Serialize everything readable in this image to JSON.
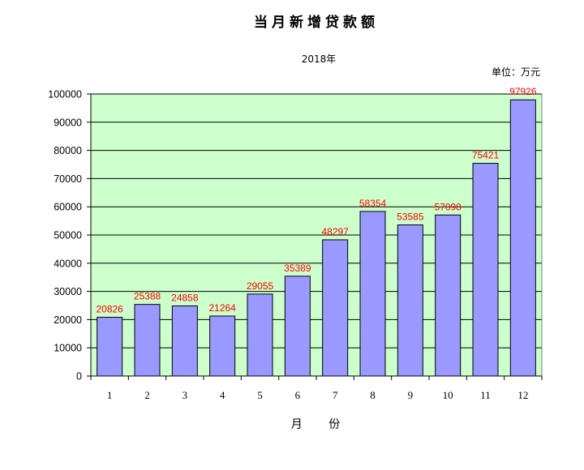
{
  "chart_data": {
    "type": "bar",
    "title": "当月新增贷款额",
    "subtitle": "2018年",
    "unit_label": "单位：万元",
    "xlabel": "月 份",
    "ylabel": "",
    "categories": [
      "1",
      "2",
      "3",
      "4",
      "5",
      "6",
      "7",
      "8",
      "9",
      "10",
      "11",
      "12"
    ],
    "values": [
      20826,
      25388,
      24858,
      21264,
      29055,
      35389,
      48297,
      58354,
      53585,
      57098,
      75421,
      97926
    ],
    "ylim": [
      0,
      100000
    ],
    "yticks": [
      0,
      10000,
      20000,
      30000,
      40000,
      50000,
      60000,
      70000,
      80000,
      90000,
      100000
    ],
    "grid": true,
    "legend": "none",
    "colors": {
      "bar_fill": "#9999ff",
      "plot_background": "#ccffcc",
      "data_label": "#ff0000",
      "axis": "#000000"
    }
  }
}
